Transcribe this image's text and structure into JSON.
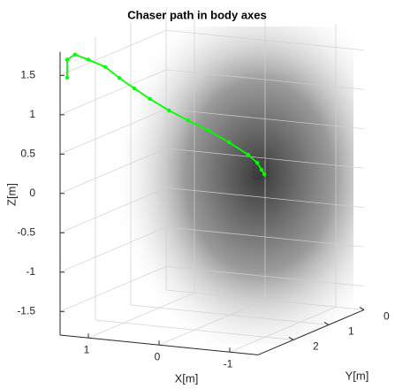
{
  "chart_data": {
    "type": "line3d",
    "title": "Chaser path in body axes",
    "xlabel": "X[m]",
    "ylabel": "Y[m]",
    "zlabel": "Z[m]",
    "color": "#00ff00",
    "x": [
      1.3,
      1.3,
      1.24,
      1.1,
      0.96,
      0.86,
      0.75,
      0.63,
      0.46,
      0.29,
      0.1,
      -0.09,
      -0.26,
      -0.29,
      -0.25,
      -0.19
    ],
    "y": [
      3.0,
      3.0,
      2.9,
      2.8,
      2.6,
      2.4,
      2.2,
      2.0,
      1.8,
      1.6,
      1.4,
      1.2,
      1.0,
      0.8,
      0.6,
      0.4
    ],
    "z": [
      1.48,
      1.71,
      1.76,
      1.69,
      1.57,
      1.4,
      1.24,
      1.08,
      0.91,
      0.76,
      0.61,
      0.44,
      0.26,
      0.12,
      -0.01,
      -0.11
    ],
    "xlim": [
      -1.4,
      1.4
    ],
    "ylim": [
      0,
      3
    ],
    "zlim": [
      -1.8,
      1.8
    ],
    "xticks": [
      -1,
      0,
      1
    ],
    "yticks": [
      0,
      1,
      2
    ],
    "zticks": [
      -1.5,
      -1,
      -0.5,
      0,
      0.5,
      1,
      1.5
    ],
    "grid": true
  }
}
